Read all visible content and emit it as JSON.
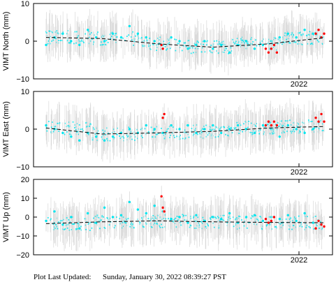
{
  "chart_data": [
    {
      "type": "scatter",
      "ylabel": "VIMT North (mm)",
      "ylim": [
        -10,
        10
      ],
      "y_ticks": [
        "10",
        "0",
        "−10"
      ],
      "x_tick_labels": [
        "2022"
      ],
      "grid": false,
      "series": [
        {
          "color": "#00e5ee",
          "marker": "dot-with-errorbars",
          "x": [
            0.0,
            0.03,
            0.06,
            0.09,
            0.12,
            0.15,
            0.18,
            0.21,
            0.24,
            0.27,
            0.3,
            0.33,
            0.36,
            0.39,
            0.42,
            0.45,
            0.48,
            0.51,
            0.54,
            0.57,
            0.6,
            0.63,
            0.66,
            0.69,
            0.72,
            0.75,
            0.78,
            0.81,
            0.84,
            0.87,
            0.9,
            0.93,
            0.96
          ],
          "y": [
            -1,
            1,
            2,
            0,
            -1,
            3,
            1,
            0,
            2,
            1,
            4,
            2,
            1,
            0,
            -1,
            1,
            0,
            -2,
            -1,
            0,
            -2,
            -1,
            -3,
            -1,
            0,
            -2,
            -1,
            0,
            1,
            2,
            1,
            3,
            2
          ]
        },
        {
          "color": "#ff0000",
          "marker": "dot-with-errorbars",
          "x": [
            0.415,
            0.42,
            0.79,
            0.8,
            0.81,
            0.82,
            0.83,
            0.97,
            0.98,
            0.99,
            1.0
          ],
          "y": [
            -1,
            -2,
            -2,
            -3,
            -2,
            -1,
            -3,
            2,
            3,
            1,
            2
          ]
        },
        {
          "color": "#000000",
          "marker": "dashed-line",
          "name": "trend",
          "x": [
            0.0,
            0.2,
            0.4,
            0.6,
            0.8,
            1.0
          ],
          "y": [
            1.0,
            0.7,
            -0.7,
            -1.6,
            -0.7,
            0.9
          ]
        }
      ]
    },
    {
      "type": "scatter",
      "ylabel": "VIMT East (mm)",
      "ylim": [
        -10,
        10
      ],
      "y_ticks": [
        "10",
        "0",
        "−10"
      ],
      "x_tick_labels": [
        "2022"
      ],
      "grid": false,
      "series": [
        {
          "color": "#00e5ee",
          "marker": "dot-with-errorbars",
          "x": [
            0.0,
            0.03,
            0.06,
            0.09,
            0.12,
            0.15,
            0.18,
            0.21,
            0.24,
            0.27,
            0.3,
            0.33,
            0.36,
            0.39,
            0.42,
            0.45,
            0.48,
            0.51,
            0.54,
            0.57,
            0.6,
            0.63,
            0.66,
            0.69,
            0.72,
            0.75,
            0.78,
            0.81,
            0.84,
            0.87,
            0.9,
            0.93,
            0.96
          ],
          "y": [
            1,
            0,
            -1,
            -2,
            -3,
            -1,
            -2,
            -3,
            -2,
            -1,
            0,
            -1,
            1,
            0,
            -1,
            1,
            0,
            1,
            -1,
            0,
            1,
            -1,
            0,
            1,
            0,
            -1,
            1,
            0,
            -2,
            1,
            0,
            -1,
            0
          ]
        },
        {
          "color": "#ff0000",
          "marker": "dot-with-errorbars",
          "x": [
            0.42,
            0.425,
            0.79,
            0.8,
            0.81,
            0.82,
            0.83,
            0.97,
            0.98,
            0.99,
            1.0
          ],
          "y": [
            3,
            4,
            1,
            2,
            1,
            2,
            1,
            3,
            2,
            4,
            2
          ]
        },
        {
          "color": "#000000",
          "marker": "dashed-line",
          "name": "trend",
          "x": [
            0.0,
            0.2,
            0.4,
            0.6,
            0.8,
            1.0
          ],
          "y": [
            0.3,
            -1.3,
            -1.0,
            -0.6,
            0.3,
            0.7
          ]
        }
      ]
    },
    {
      "type": "scatter",
      "ylabel": "VIMT Up (mm)",
      "ylim": [
        -20,
        20
      ],
      "y_ticks": [
        "20",
        "10",
        "0",
        "−10",
        "−20"
      ],
      "x_tick_labels": [
        "2022"
      ],
      "grid": false,
      "series": [
        {
          "color": "#00e5ee",
          "marker": "dot-with-errorbars",
          "x": [
            0.0,
            0.03,
            0.06,
            0.09,
            0.12,
            0.15,
            0.18,
            0.21,
            0.24,
            0.27,
            0.3,
            0.33,
            0.36,
            0.39,
            0.42,
            0.45,
            0.48,
            0.51,
            0.54,
            0.57,
            0.6,
            0.63,
            0.66,
            0.69,
            0.72,
            0.75,
            0.78,
            0.81,
            0.84,
            0.87,
            0.9,
            0.93,
            0.96
          ],
          "y": [
            -2,
            3,
            -4,
            0,
            -6,
            2,
            -3,
            5,
            0,
            1,
            8,
            4,
            2,
            6,
            3,
            -1,
            0,
            -3,
            1,
            -2,
            0,
            -1,
            2,
            -3,
            0,
            1,
            -2,
            0,
            -1,
            1,
            -2,
            2,
            -3
          ]
        },
        {
          "color": "#ff0000",
          "marker": "dot-with-errorbars",
          "x": [
            0.415,
            0.42,
            0.425,
            0.79,
            0.8,
            0.81,
            0.82,
            0.97,
            0.98,
            0.99,
            1.0
          ],
          "y": [
            11,
            5,
            3,
            -1,
            -3,
            -2,
            0,
            -6,
            -2,
            -4,
            -5
          ]
        },
        {
          "color": "#000000",
          "marker": "dashed-line",
          "name": "trend",
          "x": [
            0.0,
            0.2,
            0.4,
            0.6,
            0.8,
            1.0
          ],
          "y": [
            -3.5,
            -2.5,
            -2.0,
            -2.5,
            -2.8,
            -3.0
          ]
        }
      ]
    }
  ],
  "footer": {
    "label": "Plot Last Updated:",
    "timestamp": "Sunday, January 30, 2022 08:39:27 PST"
  },
  "colors": {
    "gps_points": "#00e5ee",
    "flagged_points": "#ff0000",
    "error_bars": "#d8d8d8",
    "trend_line": "#000000"
  }
}
